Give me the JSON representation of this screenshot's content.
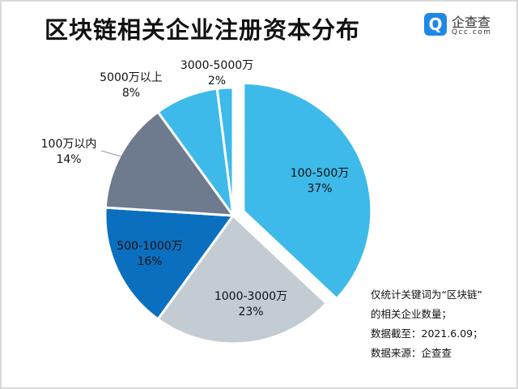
{
  "title": "区块链相关企业注册资本分布",
  "logo": {
    "name": "企查查",
    "domain": "Qcc.com",
    "icon": "qcc-logo-icon"
  },
  "notes": [
    "仅统计关键词为“区块链”",
    "的相关企业数量；",
    "数据截至：2021.6.09；",
    "数据来源：企查查"
  ],
  "chart_data": {
    "type": "pie",
    "title": "区块链相关企业注册资本分布",
    "categories": [
      "100-500万",
      "1000-3000万",
      "500-1000万",
      "100万以内",
      "5000万以上",
      "3000-5000万"
    ],
    "values": [
      37,
      23,
      16,
      14,
      8,
      2
    ],
    "labels": [
      "37%",
      "23%",
      "16%",
      "14%",
      "8%",
      "2%"
    ],
    "colors": [
      "#3DBAE9",
      "#C3CBD3",
      "#0B6FBF",
      "#6E7A8E",
      "#3DBAE9",
      "#3DBAE9"
    ],
    "exploded": [
      "100-500万"
    ],
    "start": "12 o'clock, clockwise"
  }
}
